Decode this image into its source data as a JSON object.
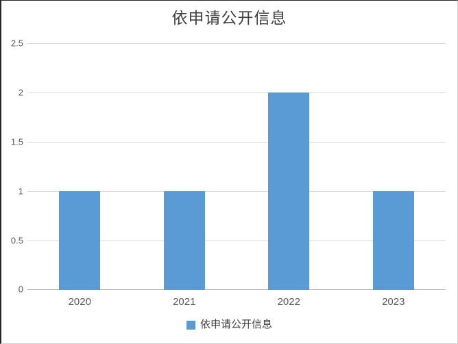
{
  "chart_data": {
    "type": "bar",
    "title": "依申请公开信息",
    "categories": [
      "2020",
      "2021",
      "2022",
      "2023"
    ],
    "series": [
      {
        "name": "依申请公开信息",
        "values": [
          1,
          1,
          2,
          1
        ],
        "color": "#5B9BD5"
      }
    ],
    "xlabel": "",
    "ylabel": "",
    "ylim": [
      0,
      2.5
    ],
    "y_ticks": [
      0,
      0.5,
      1,
      1.5,
      2,
      2.5
    ],
    "y_tick_labels": [
      "0",
      "0.5",
      "1",
      "1.5",
      "2",
      "2.5"
    ],
    "grid": "horizontal",
    "legend_position": "bottom",
    "colors": {
      "bar": "#5B9BD5",
      "gridline": "#D9D9D9",
      "axis_line": "#BFBFBF",
      "title_text": "#404040",
      "tick_text": "#595959",
      "legend_text": "#404040"
    }
  }
}
